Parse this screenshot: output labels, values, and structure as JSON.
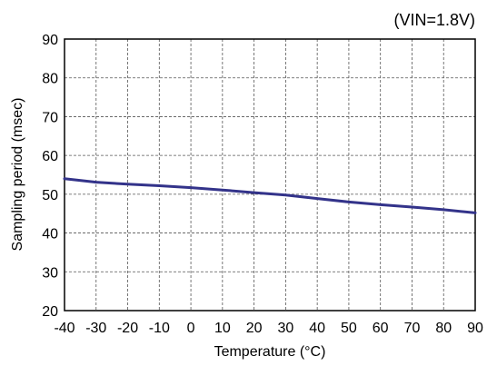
{
  "chart_data": {
    "type": "line",
    "annotation": "(VIN=1.8V)",
    "xlabel": "Temperature (°C)",
    "ylabel": "Sampling period (msec)",
    "xlim": [
      -40,
      90
    ],
    "ylim": [
      20,
      90
    ],
    "x_ticks": [
      -40,
      -30,
      -20,
      -10,
      0,
      10,
      20,
      30,
      40,
      50,
      60,
      70,
      80,
      90
    ],
    "y_ticks": [
      20,
      30,
      40,
      50,
      60,
      70,
      80,
      90
    ],
    "grid": true,
    "series": [
      {
        "color": "#33338a",
        "x": [
          -40,
          -30,
          -20,
          -10,
          0,
          10,
          20,
          30,
          40,
          50,
          60,
          70,
          80,
          90
        ],
        "y": [
          54.0,
          53.1,
          52.6,
          52.2,
          51.7,
          51.1,
          50.4,
          49.8,
          48.9,
          48.0,
          47.3,
          46.7,
          46.0,
          45.2
        ]
      }
    ]
  }
}
